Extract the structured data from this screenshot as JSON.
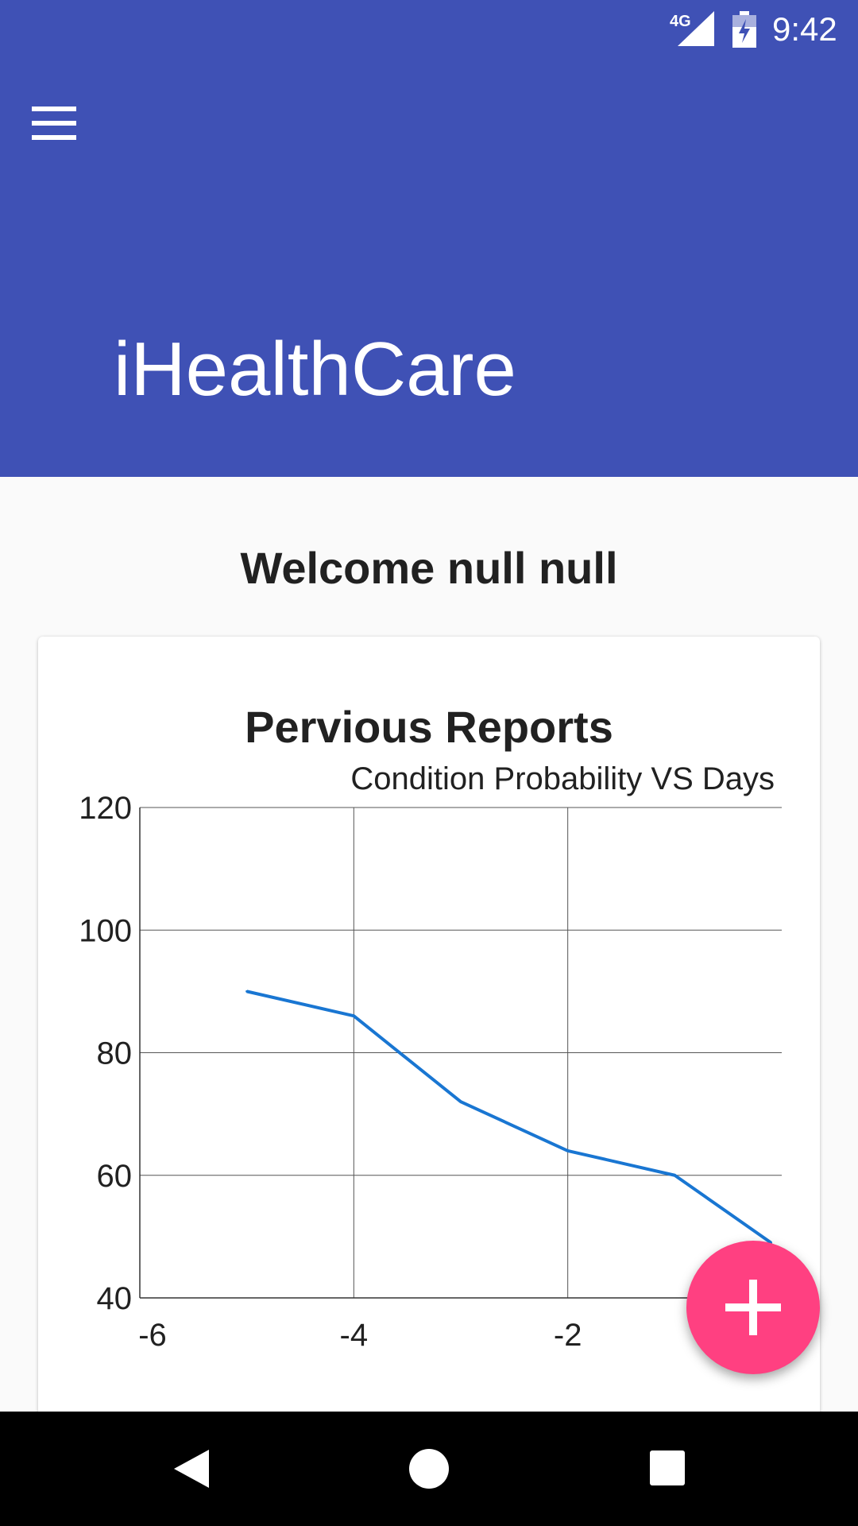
{
  "status_bar": {
    "network": "4G",
    "time": "9:42",
    "icons": [
      "signal-icon",
      "battery-charging-icon"
    ]
  },
  "appbar": {
    "title": "iHealthCare",
    "menu_icon": "hamburger-menu-icon",
    "color": "#3f51b5"
  },
  "main": {
    "welcome": "Welcome null null"
  },
  "fab": {
    "icon": "plus-icon",
    "color": "#ff4081"
  },
  "navbar": {
    "icons": [
      "back-icon",
      "home-icon",
      "recents-icon"
    ]
  },
  "chart_data": {
    "type": "line",
    "title": "Pervious Reports",
    "subtitle": "Condition Probability VS Days",
    "xlabel": "",
    "ylabel": "",
    "x_ticks": [
      -6,
      -4,
      -2
    ],
    "y_ticks": [
      40,
      60,
      80,
      100,
      120
    ],
    "xlim": [
      -6,
      0
    ],
    "ylim": [
      40,
      120
    ],
    "grid": true,
    "series": [
      {
        "color": "#1976d2",
        "x": [
          -5,
          -4,
          -3,
          -2,
          -1,
          -0.1
        ],
        "values": [
          90,
          86,
          72,
          64,
          60,
          49
        ]
      }
    ]
  }
}
